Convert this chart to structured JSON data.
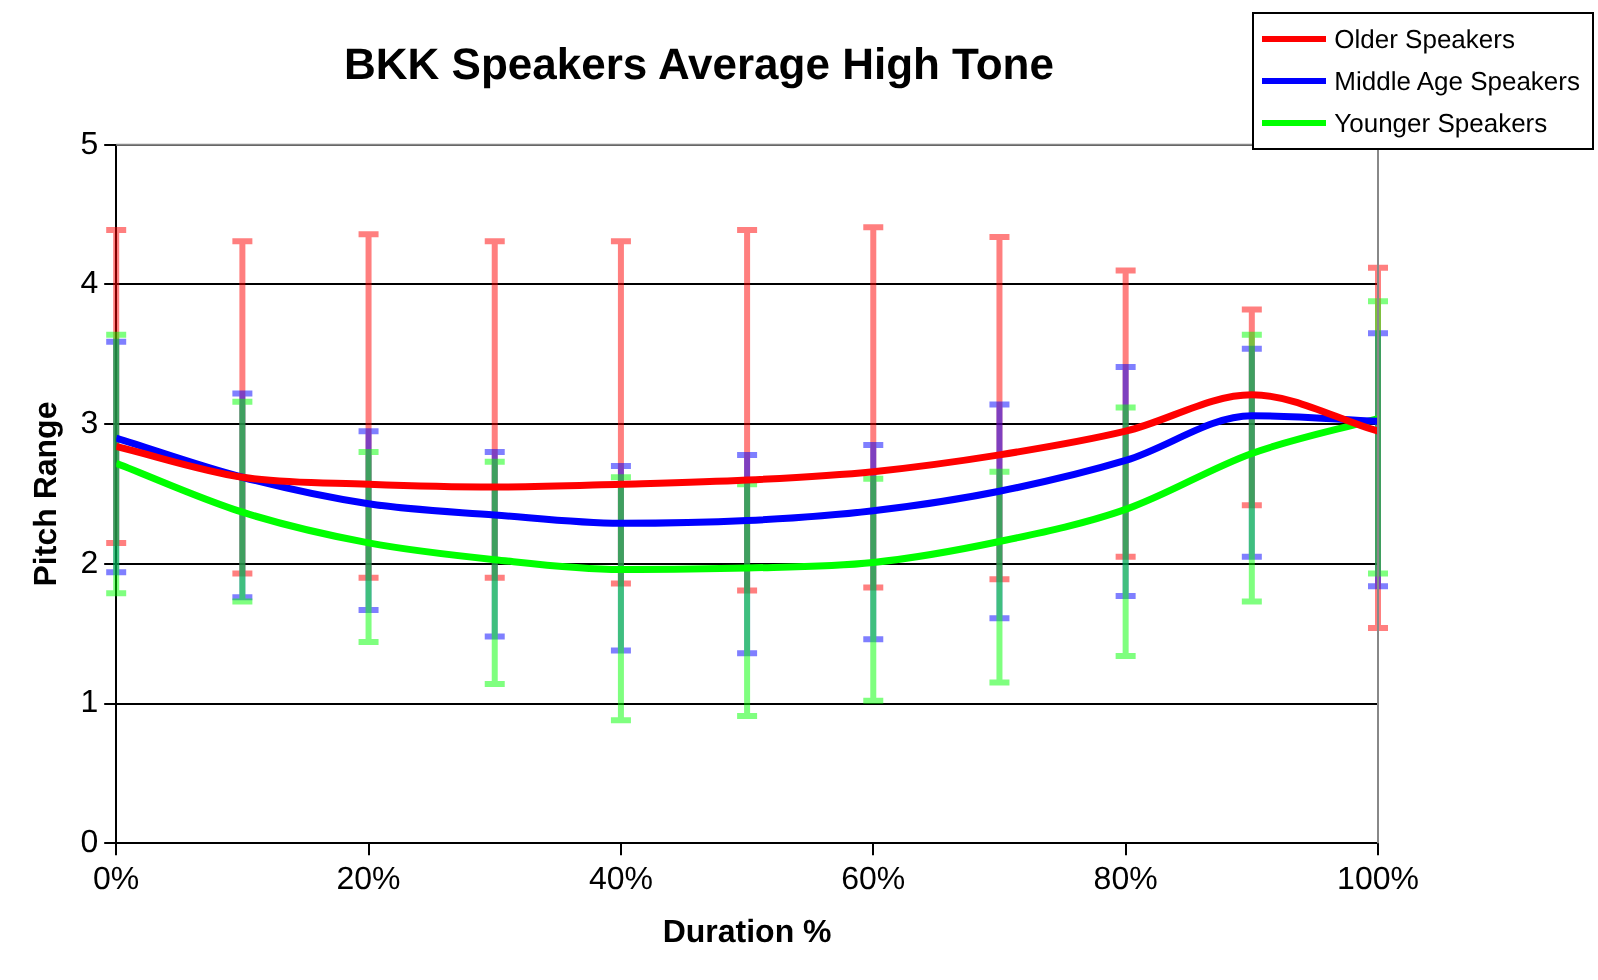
{
  "chart_data": {
    "type": "line",
    "title": "BKK Speakers Average High Tone",
    "xlabel": "Duration %",
    "ylabel": "Pitch Range",
    "x": [
      0,
      10,
      20,
      30,
      40,
      50,
      60,
      70,
      80,
      90,
      100
    ],
    "series": [
      {
        "name": "Older Speakers",
        "color": "#ff0000",
        "values": [
          2.84,
          2.62,
          2.57,
          2.55,
          2.57,
          2.6,
          2.66,
          2.78,
          2.95,
          3.21,
          2.95
        ],
        "errors": [
          [
            2.15,
            4.39
          ],
          [
            1.93,
            4.31
          ],
          [
            1.9,
            4.36
          ],
          [
            1.9,
            4.31
          ],
          [
            1.86,
            4.31
          ],
          [
            1.81,
            4.39
          ],
          [
            1.83,
            4.41
          ],
          [
            1.89,
            4.34
          ],
          [
            2.05,
            4.1
          ],
          [
            2.42,
            3.82
          ],
          [
            1.54,
            4.12
          ]
        ]
      },
      {
        "name": "Middle Age Speakers",
        "color": "#0000ff",
        "values": [
          2.9,
          2.62,
          2.43,
          2.35,
          2.29,
          2.31,
          2.38,
          2.52,
          2.74,
          3.06,
          3.02
        ],
        "errors": [
          [
            1.94,
            3.59
          ],
          [
            1.76,
            3.22
          ],
          [
            1.67,
            2.95
          ],
          [
            1.48,
            2.8
          ],
          [
            1.38,
            2.7
          ],
          [
            1.36,
            2.78
          ],
          [
            1.46,
            2.85
          ],
          [
            1.61,
            3.14
          ],
          [
            1.77,
            3.41
          ],
          [
            2.05,
            3.54
          ],
          [
            1.84,
            3.65
          ]
        ]
      },
      {
        "name": "Younger Speakers",
        "color": "#00ff00",
        "values": [
          2.72,
          2.37,
          2.15,
          2.03,
          1.96,
          1.97,
          2.01,
          2.16,
          2.39,
          2.79,
          3.04
        ],
        "errors": [
          [
            1.79,
            3.64
          ],
          [
            1.73,
            3.16
          ],
          [
            1.44,
            2.8
          ],
          [
            1.14,
            2.73
          ],
          [
            0.88,
            2.62
          ],
          [
            0.91,
            2.57
          ],
          [
            1.02,
            2.61
          ],
          [
            1.15,
            2.66
          ],
          [
            1.34,
            3.12
          ],
          [
            1.73,
            3.64
          ],
          [
            1.93,
            3.88
          ]
        ]
      }
    ],
    "xlim": [
      0,
      100
    ],
    "xticks": [
      {
        "value": 0,
        "label": "0%"
      },
      {
        "value": 20,
        "label": "20%"
      },
      {
        "value": 40,
        "label": "40%"
      },
      {
        "value": 60,
        "label": "60%"
      },
      {
        "value": 80,
        "label": "80%"
      },
      {
        "value": 100,
        "label": "100%"
      }
    ],
    "ylim": [
      0,
      5
    ],
    "yticks": [
      0,
      1,
      2,
      3,
      4,
      5
    ],
    "grid": "y",
    "legend": "top right",
    "marker": "none",
    "line_style": "solid"
  }
}
